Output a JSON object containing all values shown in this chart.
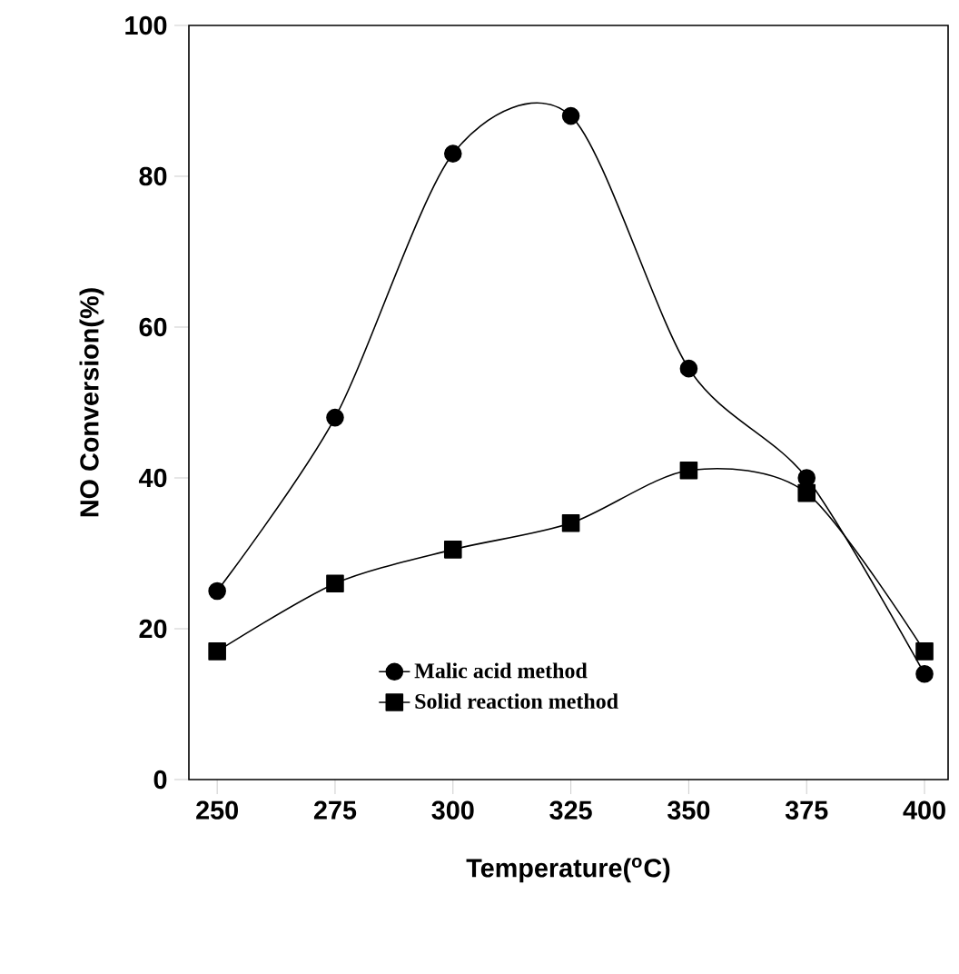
{
  "chart_data": {
    "type": "line",
    "xlabel": "Temperature($^{o}$C)",
    "ylabel": "NO Conversion(%)",
    "x": [
      250,
      275,
      300,
      325,
      350,
      375,
      400
    ],
    "series": [
      {
        "name": "Malic acid method",
        "color": "#000000",
        "marker": "circle",
        "values": [
          25,
          48,
          83,
          88,
          54.5,
          40,
          14
        ]
      },
      {
        "name": "Solid reaction method",
        "color": "#000000",
        "marker": "square",
        "values": [
          17,
          26,
          30.5,
          34,
          41,
          38,
          17
        ]
      }
    ],
    "xlim": [
      244,
      405
    ],
    "ylim": [
      0,
      100
    ],
    "xticks": [
      250,
      275,
      300,
      325,
      350,
      375,
      400
    ],
    "yticks": [
      0,
      20,
      40,
      60,
      80,
      100
    ],
    "legend": "bottom",
    "line_style": "solid"
  }
}
